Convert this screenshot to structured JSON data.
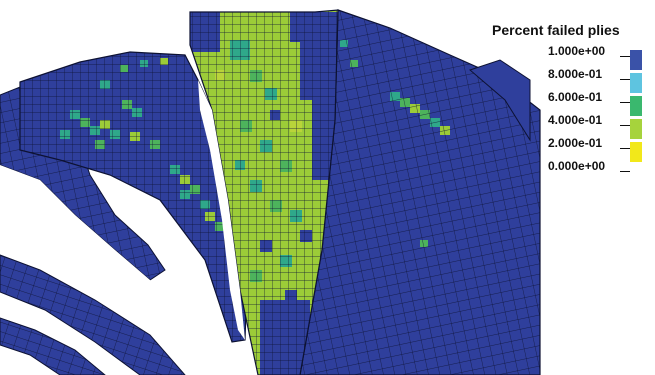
{
  "legend": {
    "title": "Percent failed plies",
    "entries": [
      {
        "label": "1.000e+00",
        "color": "#3a52a8"
      },
      {
        "label": "8.000e-01",
        "color": "#5ec4e0"
      },
      {
        "label": "6.000e-01",
        "color": "#3ab86e"
      },
      {
        "label": "4.000e-01",
        "color": "#a6d33c"
      },
      {
        "label": "2.000e-01",
        "color": "#f2e81a"
      },
      {
        "label": "0.000e+00",
        "color": "#e32420"
      }
    ]
  },
  "model_colors": {
    "base": "#2f3f9c",
    "mesh_line": "#0d1233",
    "teal": "#2fa88a",
    "green": "#4db35c",
    "lime": "#9ccc38",
    "yellowgreen": "#b9d43a"
  }
}
